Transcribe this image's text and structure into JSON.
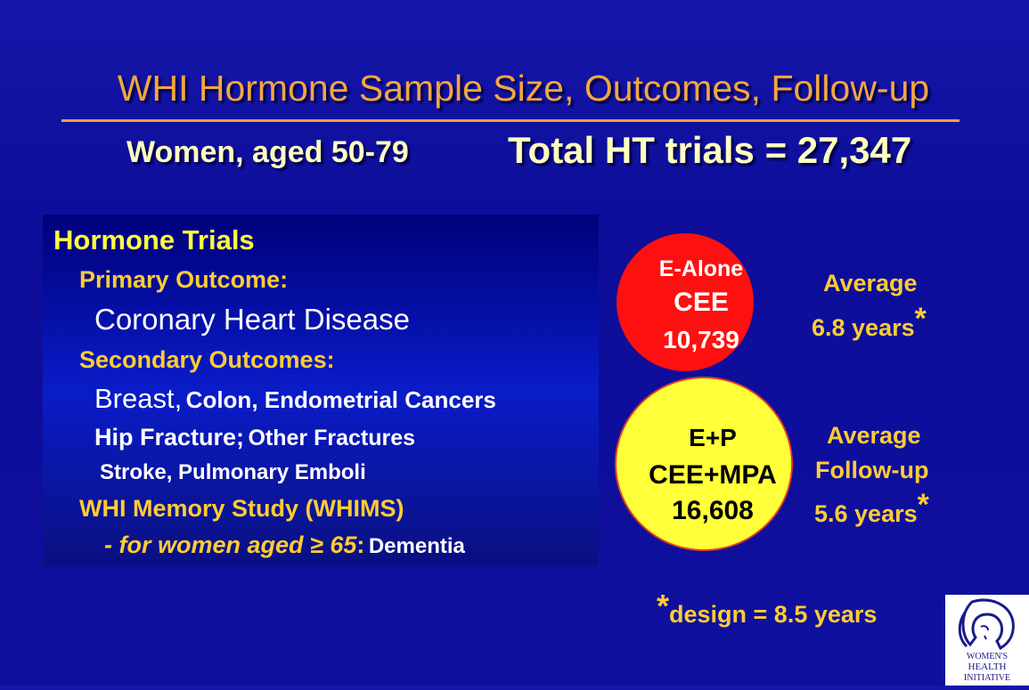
{
  "slide": {
    "title": "WHI Hormone Sample Size, Outcomes, Follow-up",
    "subtitle_left": "Women, aged 50-79",
    "subtitle_right": "Total HT trials = 27,347"
  },
  "panel": {
    "heading": "Hormone Trials",
    "primary_label": "Primary Outcome:",
    "primary_value": "Coronary Heart Disease",
    "secondary_label": "Secondary Outcomes:",
    "cancers_breast": "Breast,",
    "cancers_rest": "Colon, Endometrial Cancers",
    "hip_fracture": "Hip Fracture;",
    "other_fractures": "Other Fractures",
    "stroke": "Stroke, Pulmonary Emboli",
    "whims": "WHI Memory Study (WHIMS)",
    "whims_sub": "- for women aged ≥ 65",
    "colon": ":",
    "dementia": "Dementia"
  },
  "e_alone": {
    "line1": "E-Alone",
    "line2": "CEE",
    "line3": "10,739",
    "avg1": "Average",
    "avg2": "6.8 years",
    "star": "*"
  },
  "e_plus_p": {
    "line1": "E+P",
    "line2": "CEE+MPA",
    "line3": "16,608",
    "avg1": "Average",
    "avg2": "Follow-up",
    "avg3": "5.6 years",
    "star": "*"
  },
  "footnote": {
    "star": "*",
    "text": "design = 8.5 years"
  },
  "logo": {
    "line1": "WOMEN'S",
    "line2": "HEALTH",
    "line3": "INITIATIVE"
  },
  "colors": {
    "background": "#10109e",
    "title": "#f2a640",
    "panel_heading": "#ffff40",
    "panel_label": "#ffcc33",
    "e_alone_circle": "#ff1010",
    "e_plus_p_circle": "#ffff3a"
  }
}
